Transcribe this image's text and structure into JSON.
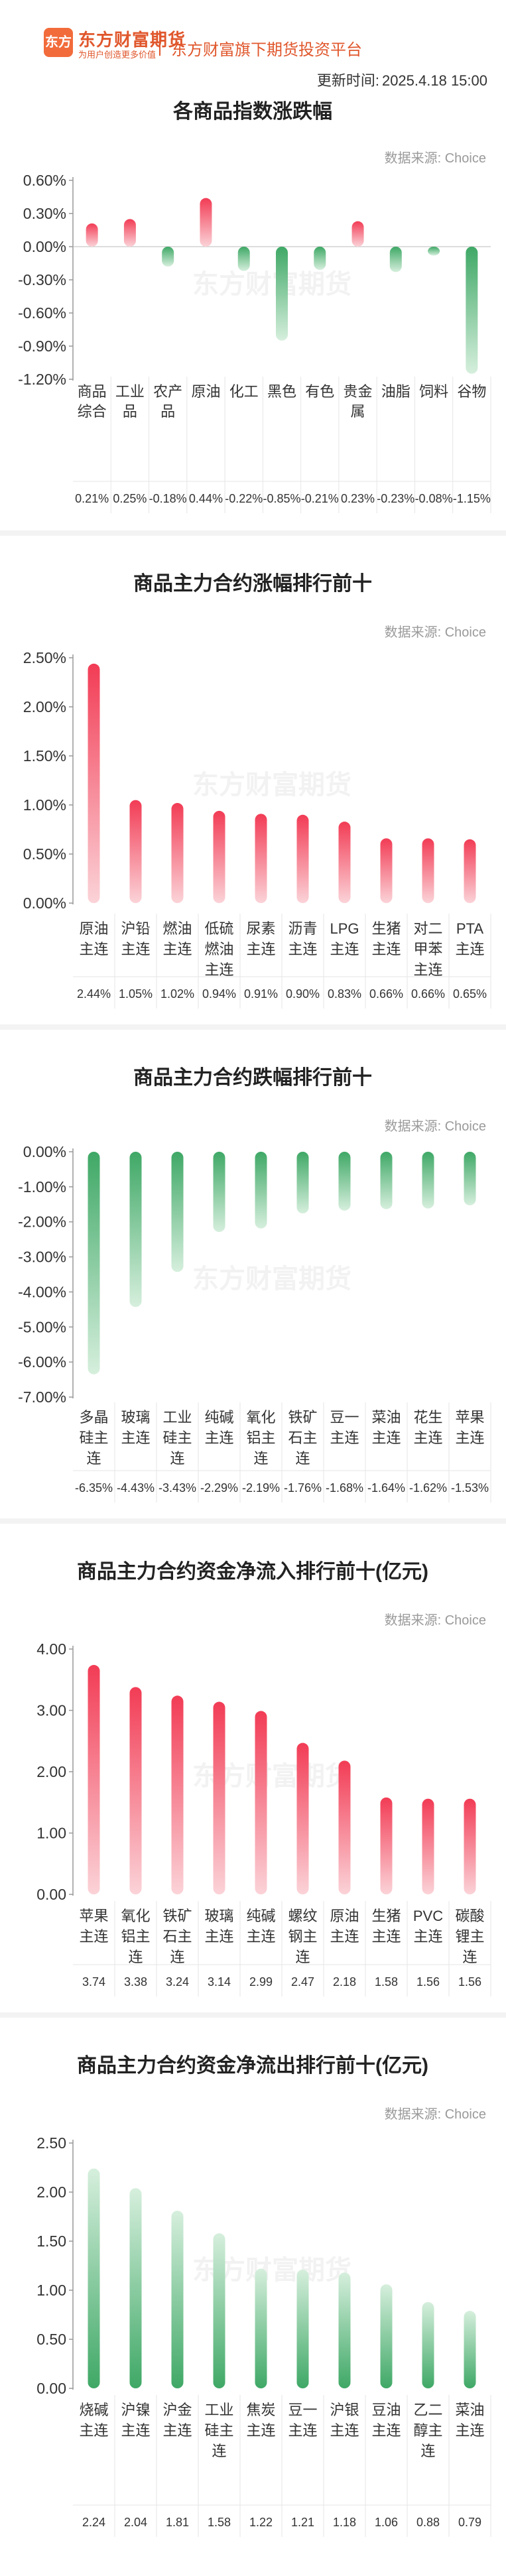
{
  "header": {
    "logo_text": "东方",
    "brand_name": "东方财富期货",
    "brand_slogan": "为用户创造更多价值",
    "platform": "东方财富旗下期货投资平台",
    "update_label": "更新时间:",
    "update_time": "2025.4.18 15:00"
  },
  "source_label": "数据来源: Choice",
  "watermark": "东方财富期货",
  "colors": {
    "up": "#f23c55",
    "down": "#3fa866",
    "accent": "#e0572c"
  },
  "chart_data": [
    {
      "type": "bar",
      "title": "各商品指数涨跌幅",
      "categories": [
        "商品综合",
        "工业品",
        "农产品",
        "原油",
        "化工",
        "黑色",
        "有色",
        "贵金属",
        "油脂",
        "饲料",
        "谷物"
      ],
      "values": [
        0.21,
        0.25,
        -0.18,
        0.44,
        -0.22,
        -0.85,
        -0.21,
        0.23,
        -0.23,
        -0.08,
        -1.15
      ],
      "value_labels": [
        "0.21%",
        "0.25%",
        "-0.18%",
        "0.44%",
        "-0.22%",
        "-0.85%",
        "-0.21%",
        "0.23%",
        "-0.23%",
        "-0.08%",
        "-1.15%"
      ],
      "ylim": [
        -1.2,
        0.6
      ],
      "yticks": [
        0.6,
        0.3,
        0.0,
        -0.3,
        -0.6,
        -0.9,
        -1.2
      ],
      "ytick_labels": [
        "0.60%",
        "0.30%",
        "0.00%",
        "-0.30%",
        "-0.60%",
        "-0.90%",
        "-1.20%"
      ],
      "grid": false
    },
    {
      "type": "bar",
      "title": "商品主力合约涨幅排行前十",
      "categories": [
        "原油主连",
        "沪铅主连",
        "燃油主连",
        "低硫燃油主连",
        "尿素主连",
        "沥青主连",
        "LPG主连",
        "生猪主连",
        "对二甲苯主连",
        "PTA主连"
      ],
      "values": [
        2.44,
        1.05,
        1.02,
        0.94,
        0.91,
        0.9,
        0.83,
        0.66,
        0.66,
        0.65
      ],
      "value_labels": [
        "2.44%",
        "1.05%",
        "1.02%",
        "0.94%",
        "0.91%",
        "0.90%",
        "0.83%",
        "0.66%",
        "0.66%",
        "0.65%"
      ],
      "ylim": [
        0,
        2.5
      ],
      "yticks": [
        2.5,
        2.0,
        1.5,
        1.0,
        0.5,
        0.0
      ],
      "ytick_labels": [
        "2.50%",
        "2.00%",
        "1.50%",
        "1.00%",
        "0.50%",
        "0.00%"
      ],
      "grid": false
    },
    {
      "type": "bar",
      "title": "商品主力合约跌幅排行前十",
      "categories": [
        "多晶硅主连",
        "玻璃主连",
        "工业硅主连",
        "纯碱主连",
        "氧化铝主连",
        "铁矿石主连",
        "豆一主连",
        "菜油主连",
        "花生主连",
        "苹果主连"
      ],
      "values": [
        -6.35,
        -4.43,
        -3.43,
        -2.29,
        -2.19,
        -1.76,
        -1.68,
        -1.64,
        -1.62,
        -1.53
      ],
      "value_labels": [
        "-6.35%",
        "-4.43%",
        "-3.43%",
        "-2.29%",
        "-2.19%",
        "-1.76%",
        "-1.68%",
        "-1.64%",
        "-1.62%",
        "-1.53%"
      ],
      "ylim": [
        -7,
        0
      ],
      "yticks": [
        0,
        -1,
        -2,
        -3,
        -4,
        -5,
        -6,
        -7
      ],
      "ytick_labels": [
        "0.00%",
        "-1.00%",
        "-2.00%",
        "-3.00%",
        "-4.00%",
        "-5.00%",
        "-6.00%",
        "-7.00%"
      ],
      "grid": false
    },
    {
      "type": "bar",
      "title": "商品主力合约资金净流入排行前十(亿元)",
      "categories": [
        "苹果主连",
        "氧化铝主连",
        "铁矿石主连",
        "玻璃主连",
        "纯碱主连",
        "螺纹钢主连",
        "原油主连",
        "生猪主连",
        "PVC主连",
        "碳酸锂主连"
      ],
      "values": [
        3.74,
        3.38,
        3.24,
        3.14,
        2.99,
        2.47,
        2.18,
        1.58,
        1.56,
        1.56
      ],
      "value_labels": [
        "3.74",
        "3.38",
        "3.24",
        "3.14",
        "2.99",
        "2.47",
        "2.18",
        "1.58",
        "1.56",
        "1.56"
      ],
      "ylim": [
        0,
        4
      ],
      "yticks": [
        4,
        3,
        2,
        1,
        0
      ],
      "ytick_labels": [
        "4.00",
        "3.00",
        "2.00",
        "1.00",
        "0.00"
      ],
      "grid": false
    },
    {
      "type": "bar",
      "title": "商品主力合约资金净流出排行前十(亿元)",
      "categories": [
        "烧碱主连",
        "沪镍主连",
        "沪金主连",
        "工业硅主连",
        "焦炭主连",
        "豆一主连",
        "沪银主连",
        "豆油主连",
        "乙二醇主连",
        "菜油主连"
      ],
      "values": [
        2.24,
        2.04,
        1.81,
        1.58,
        1.22,
        1.21,
        1.18,
        1.06,
        0.88,
        0.79
      ],
      "value_labels": [
        "2.24",
        "2.04",
        "1.81",
        "1.58",
        "1.22",
        "1.21",
        "1.18",
        "1.06",
        "0.88",
        "0.79"
      ],
      "ylim": [
        0,
        2.5
      ],
      "yticks": [
        2.5,
        2.0,
        1.5,
        1.0,
        0.5,
        0.0
      ],
      "ytick_labels": [
        "2.50",
        "2.00",
        "1.50",
        "1.00",
        "0.50",
        "0.00"
      ],
      "grid": false
    }
  ]
}
